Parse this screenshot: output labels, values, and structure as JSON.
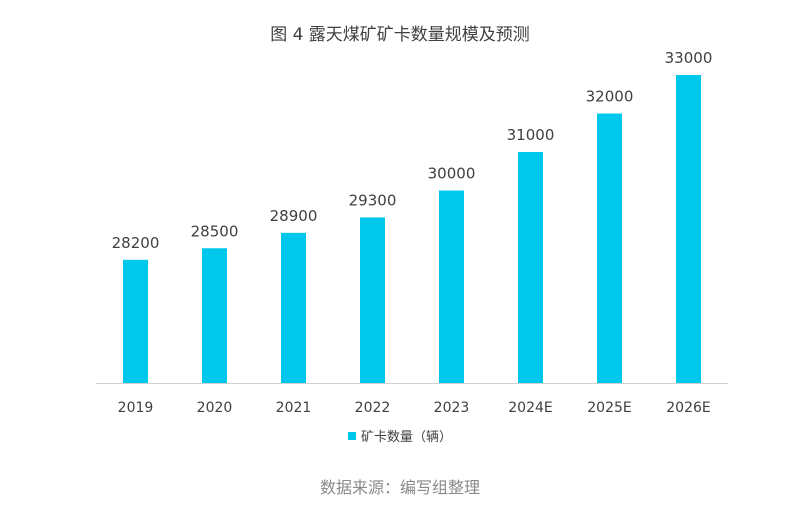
{
  "chart_data": {
    "type": "bar",
    "title": "图 4  露天煤矿矿卡数量规模及预测",
    "categories": [
      "2019",
      "2020",
      "2021",
      "2022",
      "2023",
      "2024E",
      "2025E",
      "2026E"
    ],
    "series": [
      {
        "name": "矿卡数量（辆）",
        "values": [
          28200,
          28500,
          28900,
          29300,
          30000,
          31000,
          32000,
          33000
        ]
      }
    ],
    "value_labels": [
      "28200",
      "28500",
      "28900",
      "29300",
      "30000",
      "31000",
      "32000",
      "33000"
    ],
    "xlabel": "",
    "ylabel": "",
    "ylim": [
      25000,
      33000
    ],
    "y_axis_visible": false,
    "grid": false,
    "legend_position": "bottom",
    "bar_color": "#00c8ec"
  },
  "source_note": "数据来源：编写组整理"
}
